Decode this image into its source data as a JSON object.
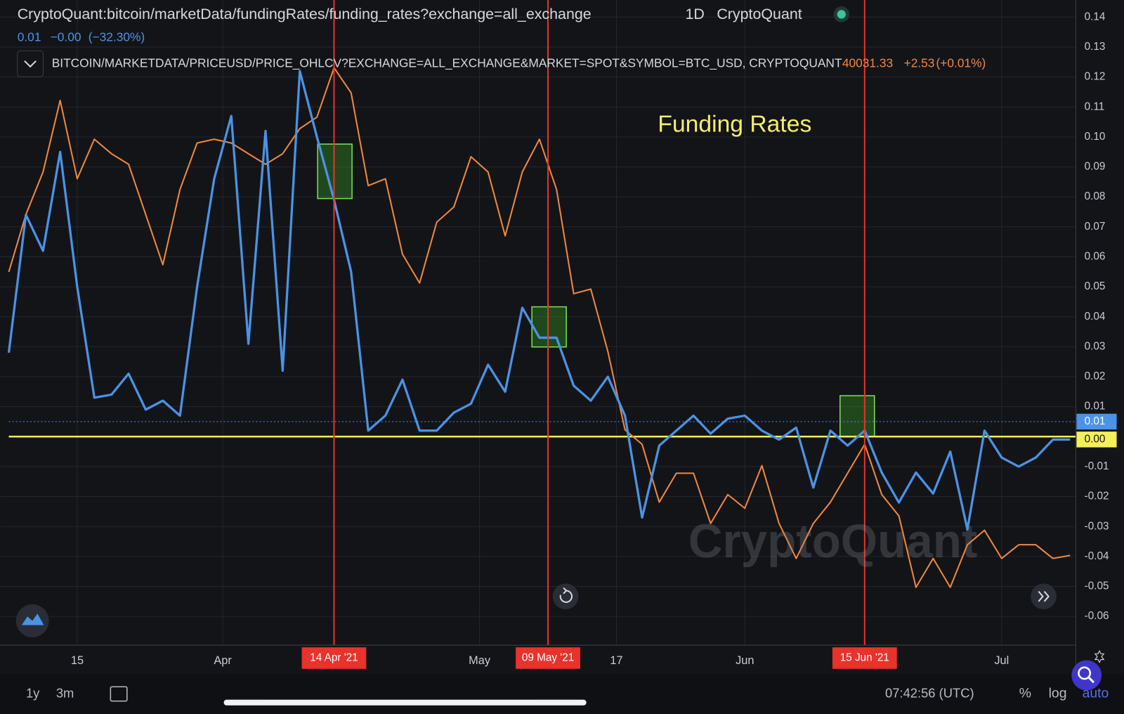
{
  "chart_data": {
    "type": "line",
    "title": "CryptoQuant:bitcoin/marketData/fundingRates/funding_rates?exchange=all_exchange",
    "interval": "1D",
    "source": "CryptoQuant",
    "annotation": "Funding Rates",
    "watermark": "CryptoQuant",
    "x": [
      "2021-03-07",
      "2021-03-09",
      "2021-03-11",
      "2021-03-13",
      "2021-03-15",
      "2021-03-17",
      "2021-03-19",
      "2021-03-21",
      "2021-03-23",
      "2021-03-25",
      "2021-03-27",
      "2021-03-29",
      "2021-03-31",
      "2021-04-02",
      "2021-04-04",
      "2021-04-06",
      "2021-04-08",
      "2021-04-10",
      "2021-04-12",
      "2021-04-14",
      "2021-04-16",
      "2021-04-18",
      "2021-04-20",
      "2021-04-22",
      "2021-04-24",
      "2021-04-26",
      "2021-04-28",
      "2021-04-30",
      "2021-05-02",
      "2021-05-04",
      "2021-05-06",
      "2021-05-08",
      "2021-05-10",
      "2021-05-12",
      "2021-05-14",
      "2021-05-16",
      "2021-05-18",
      "2021-05-20",
      "2021-05-22",
      "2021-05-24",
      "2021-05-26",
      "2021-05-28",
      "2021-05-30",
      "2021-06-01",
      "2021-06-03",
      "2021-06-05",
      "2021-06-07",
      "2021-06-09",
      "2021-06-11",
      "2021-06-13",
      "2021-06-15",
      "2021-06-17",
      "2021-06-19",
      "2021-06-21",
      "2021-06-23",
      "2021-06-25",
      "2021-06-27",
      "2021-06-29",
      "2021-07-01",
      "2021-07-03",
      "2021-07-05",
      "2021-07-07",
      "2021-07-09"
    ],
    "xlim": [
      "2021-03-07",
      "2021-07-09"
    ],
    "xticks": [
      {
        "value": "2021-03-15",
        "label": "15"
      },
      {
        "value": "2021-04-01",
        "label": "Apr"
      },
      {
        "value": "2021-05-01",
        "label": "May"
      },
      {
        "value": "2021-05-17",
        "label": "17"
      },
      {
        "value": "2021-06-01",
        "label": "Jun"
      },
      {
        "value": "2021-07-01",
        "label": "Jul"
      }
    ],
    "markers": [
      {
        "value": "2021-04-14",
        "label": "14 Apr '21"
      },
      {
        "value": "2021-05-09",
        "label": "09 May '21"
      },
      {
        "value": "2021-06-15",
        "label": "15 Jun '21"
      }
    ],
    "ylim": [
      -0.0696,
      0.1457
    ],
    "yticks": [
      0.14,
      0.13,
      0.12,
      0.11,
      {
        "value": 0.1,
        "label": "0.10"
      },
      0.09,
      0.08,
      0.07,
      0.06,
      0.05,
      0.04,
      0.03,
      0.02,
      0.01,
      -0.01,
      -0.02,
      -0.03,
      -0.04,
      -0.05,
      -0.06
    ],
    "y2lim": [
      26600,
      69000
    ],
    "zero_line": {
      "value": 0,
      "label": "0.00",
      "color": "#f5f05a"
    },
    "last_value": {
      "value": 0.005,
      "label": "0.01"
    },
    "grid": true,
    "series": [
      {
        "name": "CryptoQuant:bitcoin/marketData/fundingRates/funding_rates?exchange=all_exchange",
        "legend_values": [
          "0.01",
          "−0.00",
          "(−32.30%)"
        ],
        "color": "#4a93e6",
        "values": [
          0.028,
          0.074,
          0.062,
          0.095,
          0.05,
          0.013,
          0.014,
          0.021,
          0.009,
          0.012,
          0.007,
          0.05,
          0.086,
          0.107,
          0.031,
          0.102,
          0.022,
          0.122,
          0.1,
          0.079,
          0.055,
          0.002,
          0.007,
          0.019,
          0.002,
          0.002,
          0.008,
          0.011,
          0.024,
          0.015,
          0.043,
          0.033,
          0.033,
          0.017,
          0.012,
          0.02,
          0.007,
          -0.027,
          -0.003,
          0.002,
          0.007,
          0.001,
          0.006,
          0.007,
          0.002,
          -0.001,
          0.003,
          -0.017,
          0.002,
          -0.003,
          0.002,
          -0.012,
          -0.022,
          -0.012,
          -0.019,
          -0.005,
          -0.031,
          0.002,
          -0.007,
          -0.01,
          -0.007,
          -0.001,
          -0.001
        ]
      },
      {
        "name": "BITCOIN/MARKETDATA/PRICEUSD/PRICE_OHLCV?EXCHANGE=ALL_EXCHANGE&MARKET=SPOT&SYMBOL=BTC_USD, CRYPTOQUANT",
        "legend_values": [
          "40031.33",
          "+2.53",
          "(+0.01%)"
        ],
        "color": "#f0883e",
        "axis": "y2",
        "values": [
          51127,
          54900,
          57700,
          62400,
          57250,
          59850,
          58900,
          58200,
          54900,
          51600,
          56550,
          59600,
          59850,
          59600,
          58900,
          58200,
          58900,
          60550,
          61300,
          64550,
          62900,
          56800,
          57250,
          52300,
          50400,
          54400,
          55400,
          58700,
          57700,
          53500,
          57700,
          59850,
          56550,
          49700,
          50000,
          45900,
          40750,
          39800,
          36000,
          37900,
          37900,
          34600,
          36500,
          35600,
          38400,
          34600,
          32300,
          34600,
          36000,
          37900,
          39800,
          36500,
          35100,
          30400,
          32300,
          30400,
          33200,
          34150,
          32300,
          33200,
          33200,
          32300,
          32500
        ]
      }
    ],
    "toolbar": {
      "ranges": [
        "1y",
        "3m"
      ],
      "clock": "07:42:56 (UTC)",
      "options": [
        "%",
        "log",
        "auto"
      ]
    }
  }
}
